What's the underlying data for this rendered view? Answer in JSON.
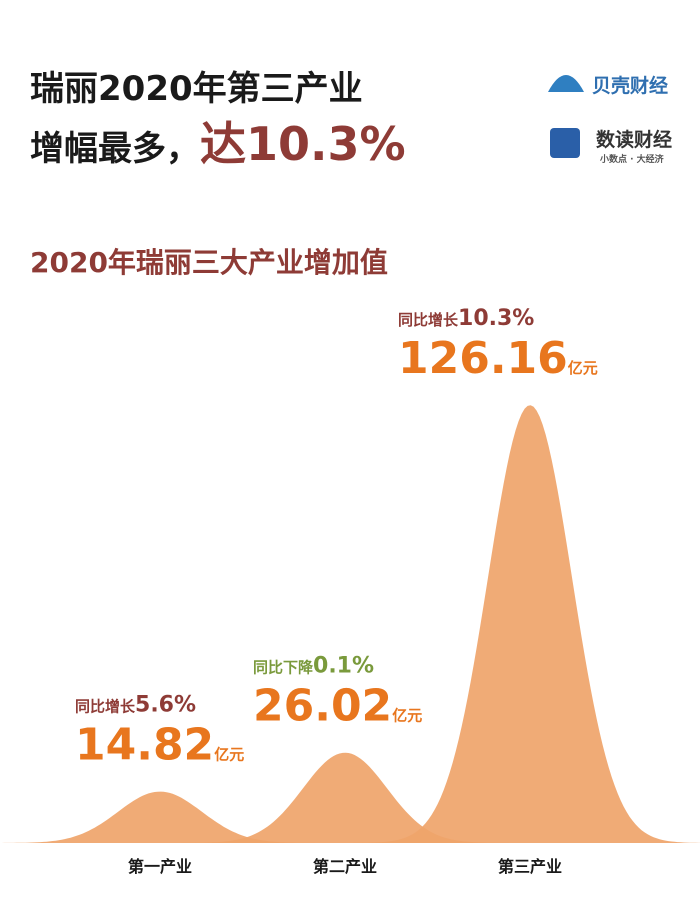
{
  "header": {
    "title_line1": "瑞丽2020年第三产业",
    "title_line2": "增幅最多，",
    "title_highlight": "达10.3%"
  },
  "logos": {
    "brand1": "贝壳财经",
    "brand2": "数读财经",
    "slogan": "小数点 · 大经济"
  },
  "chart_data": {
    "type": "bell",
    "title": "2020年瑞丽三大产业增加值",
    "categories": [
      "第一产业",
      "第二产业",
      "第三产业"
    ],
    "values": [
      14.82,
      26.02,
      126.16
    ],
    "unit": "亿元",
    "change_labels": [
      {
        "prefix": "同比增长",
        "value": "5.6%"
      },
      {
        "prefix": "同比下降",
        "value": "0.1%"
      },
      {
        "prefix": "同比增长",
        "value": "10.3%"
      }
    ],
    "change_colors": [
      "#8e3b36",
      "#7a9a3c",
      "#8e3b36"
    ],
    "color": "#efa46a",
    "value_color": "#e8761e"
  }
}
